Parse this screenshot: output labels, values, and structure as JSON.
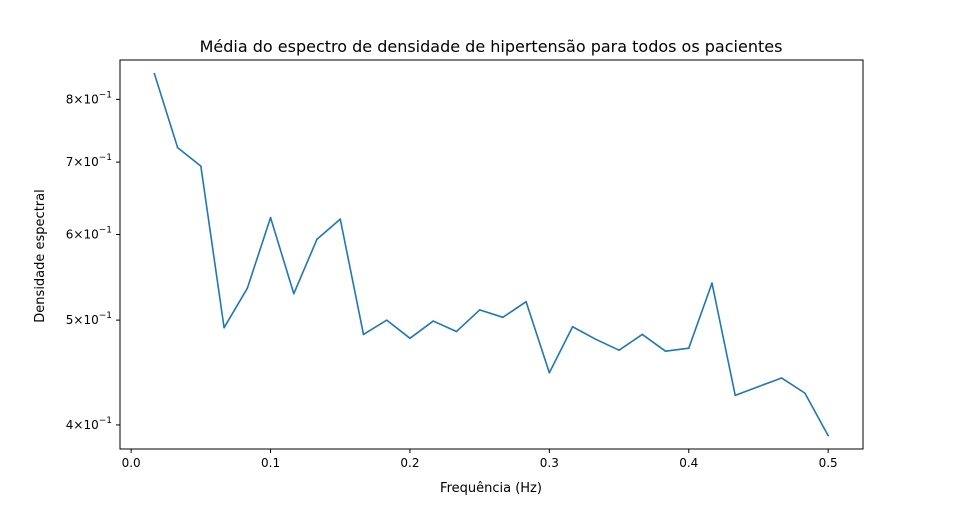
{
  "chart_data": {
    "type": "line",
    "title": "Média do espectro de densidade de hipertensão para todos os pacientes",
    "xlabel": "Frequência (Hz)",
    "ylabel": "Densidade espectral",
    "xscale": "linear",
    "yscale": "log",
    "xlim": [
      -0.008,
      0.525
    ],
    "ylim": [
      0.38,
      0.87
    ],
    "x_ticks": [
      {
        "value": 0.0,
        "label": "0.0"
      },
      {
        "value": 0.1,
        "label": "0.1"
      },
      {
        "value": 0.2,
        "label": "0.2"
      },
      {
        "value": 0.3,
        "label": "0.3"
      },
      {
        "value": 0.4,
        "label": "0.4"
      },
      {
        "value": 0.5,
        "label": "0.5"
      }
    ],
    "y_ticks": [
      {
        "value": 0.4,
        "base": "4×10",
        "exp": "−1"
      },
      {
        "value": 0.5,
        "base": "5×10",
        "exp": "−1"
      },
      {
        "value": 0.6,
        "base": "6×10",
        "exp": "−1"
      },
      {
        "value": 0.7,
        "base": "7×10",
        "exp": "−1"
      },
      {
        "value": 0.8,
        "base": "8×10",
        "exp": "−1"
      }
    ],
    "grid": false,
    "legend": "none",
    "series": [
      {
        "color": "#1f77b4",
        "x": [
          0.01667,
          0.03333,
          0.05,
          0.06667,
          0.08333,
          0.1,
          0.11667,
          0.13333,
          0.15,
          0.16667,
          0.18333,
          0.2,
          0.21667,
          0.23333,
          0.25,
          0.26667,
          0.28333,
          0.3,
          0.31667,
          0.33333,
          0.35,
          0.36667,
          0.38333,
          0.4,
          0.41667,
          0.43333,
          0.45,
          0.46667,
          0.48333,
          0.5
        ],
        "y": [
          0.845,
          0.722,
          0.694,
          0.492,
          0.535,
          0.622,
          0.529,
          0.594,
          0.62,
          0.485,
          0.5,
          0.481,
          0.499,
          0.488,
          0.511,
          0.503,
          0.52,
          0.447,
          0.493,
          0.48,
          0.469,
          0.485,
          0.468,
          0.471,
          0.541,
          0.426,
          0.434,
          0.442,
          0.428,
          0.391
        ]
      }
    ]
  }
}
